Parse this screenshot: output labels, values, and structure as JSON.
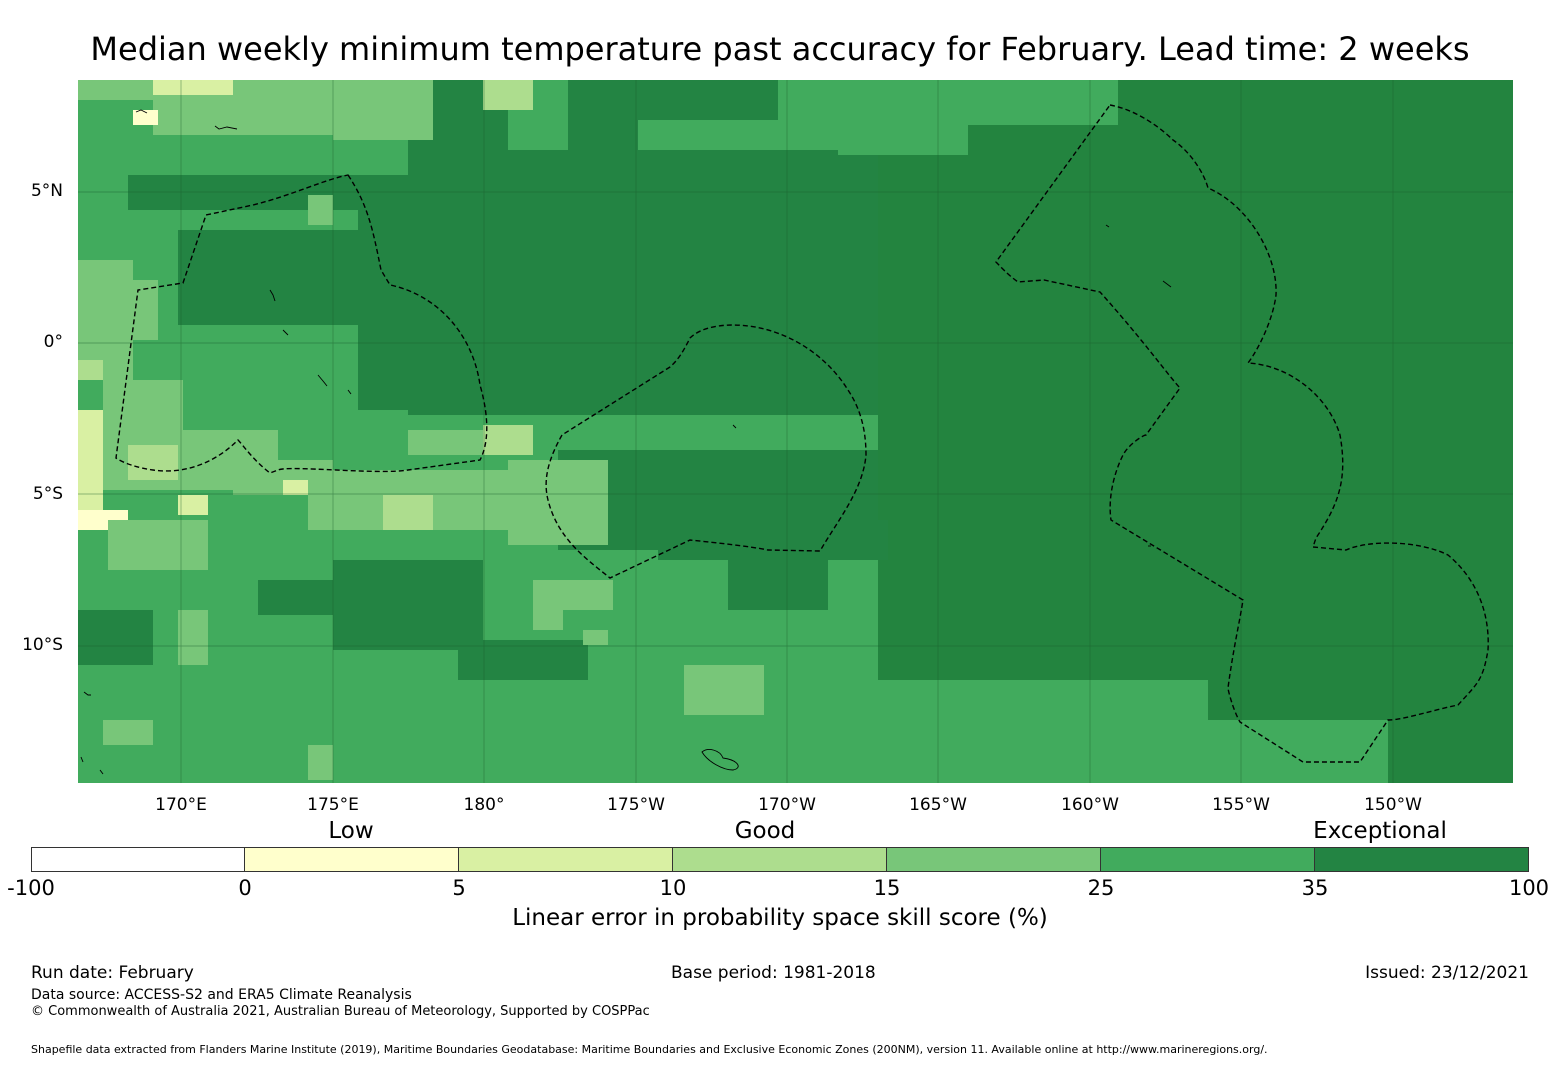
{
  "title": "Median weekly minimum temperature past accuracy for February. Lead time: 2 weeks",
  "map": {
    "lat_labels": [
      "5°N",
      "0°",
      "5°S",
      "10°S"
    ],
    "lon_labels": [
      "170°E",
      "175°E",
      "180°",
      "175°W",
      "170°W",
      "165°W",
      "160°W",
      "155°W",
      "150°W"
    ]
  },
  "legend": {
    "categories": [
      "Low",
      "Good",
      "Exceptional"
    ],
    "ticks": [
      "-100",
      "0",
      "5",
      "10",
      "15",
      "25",
      "35",
      "100"
    ],
    "colors": [
      "#ffffff",
      "#ffffcc",
      "#d9f0a3",
      "#addd8e",
      "#78c679",
      "#41ab5d",
      "#238443"
    ],
    "label": "Linear error in probability space skill score (%)"
  },
  "footer": {
    "run_date": "Run date: February",
    "base_period": "Base period: 1981-2018",
    "issued": "Issued: 23/12/2021",
    "data_source": "Data source: ACCESS-S2 and ERA5 Climate Reanalysis",
    "copyright": "© Commonwealth of Australia 2021, Australian Bureau of Meteorology, Supported by COSPPac",
    "shapefile": "Shapefile data extracted from Flanders Marine Institute (2019), Maritime Boundaries Geodatabase: Maritime Boundaries and Exclusive Economic Zones (200NM), version 11. Available online at http://www.marineregions.org/."
  }
}
